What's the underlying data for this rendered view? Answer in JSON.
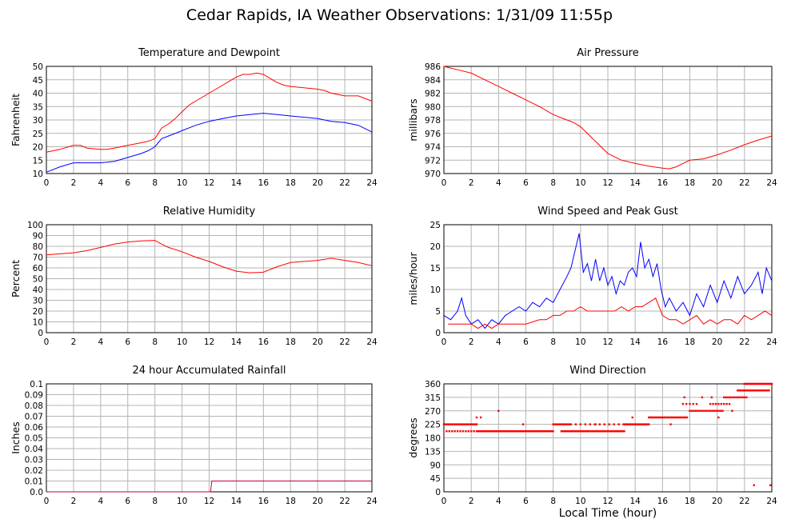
{
  "page": {
    "title": "Cedar Rapids, IA Weather Observations: 1/31/09 11:55p",
    "x_axis_label": "Local Time (hour)"
  },
  "colors": {
    "red": "#ff0000",
    "blue": "#0000ff",
    "rain": "#c0003a",
    "grid": "#b4b4b4"
  },
  "chart_data": [
    {
      "id": "temp",
      "type": "line",
      "title": "Temperature and Dewpoint",
      "ylabel": "Fahrenheit",
      "xlim": [
        0,
        24
      ],
      "ylim": [
        10,
        50
      ],
      "xticks": [
        0,
        2,
        4,
        6,
        8,
        10,
        12,
        14,
        16,
        18,
        20,
        22,
        24
      ],
      "yticks": [
        10,
        15,
        20,
        25,
        30,
        35,
        40,
        45,
        50
      ],
      "grid": true,
      "series": [
        {
          "color": "#ff0000",
          "x": [
            0,
            1,
            2,
            2.5,
            3,
            4,
            4.5,
            5,
            6,
            7,
            7.5,
            8,
            8.5,
            9,
            9.5,
            10,
            10.5,
            11,
            11.5,
            12,
            12.5,
            13,
            13.5,
            14,
            14.5,
            15,
            15.5,
            16,
            16.5,
            17,
            17.5,
            18,
            19,
            20,
            20.5,
            21,
            22,
            23,
            24
          ],
          "y": [
            18,
            19,
            20.5,
            20.5,
            19.5,
            19,
            19,
            19.5,
            20.5,
            21.5,
            22,
            23,
            27,
            28.5,
            30.5,
            33,
            35.5,
            37,
            38.5,
            40,
            41.5,
            43,
            44.5,
            46,
            47,
            47,
            47.5,
            47,
            45.5,
            44,
            43,
            42.5,
            42,
            41.5,
            41,
            40,
            39,
            39,
            37
          ]
        },
        {
          "color": "#0000ff",
          "x": [
            0,
            1,
            2,
            3,
            4,
            5,
            6,
            7,
            7.5,
            8,
            8.5,
            9,
            10,
            11,
            12,
            13,
            14,
            15,
            16,
            17,
            18,
            19,
            20,
            21,
            22,
            23,
            24
          ],
          "y": [
            10.5,
            12.5,
            14,
            14,
            14,
            14.5,
            16,
            17.5,
            18.5,
            20,
            23,
            24,
            26,
            28,
            29.5,
            30.5,
            31.5,
            32,
            32.5,
            32,
            31.5,
            31,
            30.5,
            29.5,
            29,
            28,
            25.5
          ]
        }
      ]
    },
    {
      "id": "pressure",
      "type": "line",
      "title": "Air Pressure",
      "ylabel": "millibars",
      "xlim": [
        0,
        24
      ],
      "ylim": [
        970,
        986
      ],
      "xticks": [
        0,
        2,
        4,
        6,
        8,
        10,
        12,
        14,
        16,
        18,
        20,
        22,
        24
      ],
      "yticks": [
        970,
        972,
        974,
        976,
        978,
        980,
        982,
        984,
        986
      ],
      "grid": true,
      "series": [
        {
          "color": "#ff0000",
          "x": [
            0,
            1,
            2,
            3,
            4,
            5,
            6,
            7,
            8,
            9,
            9.5,
            10,
            11,
            12,
            13,
            14,
            15,
            16,
            16.5,
            17,
            17.5,
            18,
            19,
            20,
            21,
            22,
            23,
            24
          ],
          "y": [
            986,
            985.5,
            985,
            984,
            983,
            982,
            981,
            980,
            978.8,
            978,
            977.6,
            977,
            975,
            973,
            972,
            971.5,
            971.1,
            970.8,
            970.7,
            971,
            971.5,
            972,
            972.2,
            972.8,
            973.5,
            974.3,
            975,
            975.6
          ]
        }
      ]
    },
    {
      "id": "humidity",
      "type": "line",
      "title": "Relative Humidity",
      "ylabel": "Percent",
      "xlim": [
        0,
        24
      ],
      "ylim": [
        0,
        100
      ],
      "xticks": [
        0,
        2,
        4,
        6,
        8,
        10,
        12,
        14,
        16,
        18,
        20,
        22,
        24
      ],
      "yticks": [
        0,
        10,
        20,
        30,
        40,
        50,
        60,
        70,
        80,
        90,
        100
      ],
      "grid": true,
      "series": [
        {
          "color": "#ff0000",
          "x": [
            0,
            1,
            2,
            3,
            4,
            5,
            6,
            7,
            8,
            8.5,
            9,
            10,
            11,
            12,
            13,
            14,
            15,
            16,
            17,
            18,
            19,
            20,
            21,
            22,
            23,
            24
          ],
          "y": [
            72,
            73,
            74,
            76,
            79,
            82,
            84,
            85,
            85.5,
            82,
            79,
            75,
            70,
            66,
            61,
            57,
            55.5,
            56,
            61,
            65,
            66,
            67,
            69,
            67,
            65,
            62
          ]
        }
      ]
    },
    {
      "id": "wind",
      "type": "line",
      "title": "Wind Speed and Peak Gust",
      "ylabel": "miles/hour",
      "xlim": [
        0,
        24
      ],
      "ylim": [
        0,
        25
      ],
      "xticks": [
        0,
        2,
        4,
        6,
        8,
        10,
        12,
        14,
        16,
        18,
        20,
        22,
        24
      ],
      "yticks": [
        0,
        5,
        10,
        15,
        20,
        25
      ],
      "grid": true,
      "series": [
        {
          "color": "#0000ff",
          "x": [
            0,
            0.5,
            1,
            1.3,
            1.6,
            2,
            2.5,
            3,
            3.5,
            4,
            4.5,
            5,
            5.5,
            6,
            6.5,
            7,
            7.5,
            8,
            8.5,
            9,
            9.3,
            9.6,
            9.9,
            10.2,
            10.5,
            10.8,
            11.1,
            11.4,
            11.7,
            12,
            12.3,
            12.6,
            12.9,
            13.2,
            13.5,
            13.8,
            14.1,
            14.4,
            14.7,
            15,
            15.3,
            15.6,
            15.9,
            16.2,
            16.5,
            17,
            17.5,
            18,
            18.5,
            19,
            19.5,
            20,
            20.5,
            21,
            21.5,
            22,
            22.5,
            23,
            23.3,
            23.6,
            24
          ],
          "y": [
            4,
            3,
            5,
            8,
            4,
            2,
            3,
            1,
            3,
            2,
            4,
            5,
            6,
            5,
            7,
            6,
            8,
            7,
            10,
            13,
            15,
            19,
            23,
            14,
            16,
            12,
            17,
            12,
            15,
            11,
            13,
            9,
            12,
            11,
            14,
            15,
            13,
            21,
            15,
            17,
            13,
            16,
            10,
            6,
            8,
            5,
            7,
            4,
            9,
            6,
            11,
            7,
            12,
            8,
            13,
            9,
            11,
            14,
            9,
            15,
            12
          ]
        },
        {
          "color": "#ff0000",
          "x": [
            0.3,
            1,
            2,
            2.5,
            3,
            3.5,
            4,
            5,
            6,
            7,
            7.5,
            8,
            8.5,
            9,
            9.5,
            10,
            10.5,
            11,
            11.5,
            12,
            12.5,
            13,
            13.5,
            14,
            14.5,
            15,
            15.5,
            16,
            16.5,
            17,
            17.5,
            18,
            18.5,
            19,
            19.5,
            20,
            20.5,
            21,
            21.5,
            22,
            22.5,
            23,
            23.5,
            24
          ],
          "y": [
            2,
            2,
            2,
            1,
            2,
            1,
            2,
            2,
            2,
            3,
            3,
            4,
            4,
            5,
            5,
            6,
            5,
            5,
            5,
            5,
            5,
            6,
            5,
            6,
            6,
            7,
            8,
            4,
            3,
            3,
            2,
            3,
            4,
            2,
            3,
            2,
            3,
            3,
            2,
            4,
            3,
            4,
            5,
            4
          ]
        }
      ]
    },
    {
      "id": "rain",
      "type": "line",
      "title": "24 hour Accumulated Rainfall",
      "ylabel": "Inches",
      "xlim": [
        0,
        24
      ],
      "ylim": [
        0,
        0.1
      ],
      "xticks": [
        0,
        2,
        4,
        6,
        8,
        10,
        12,
        14,
        16,
        18,
        20,
        22,
        24
      ],
      "yticks": [
        0.0,
        0.01,
        0.02,
        0.03,
        0.04,
        0.05,
        0.06,
        0.07,
        0.08,
        0.09,
        0.1
      ],
      "ytick_labels": [
        "0.0",
        "0.01",
        "0.02",
        "0.03",
        "0.04",
        "0.05",
        "0.06",
        "0.07",
        "0.08",
        "0.09",
        "0.1"
      ],
      "grid": true,
      "series": [
        {
          "color": "#c0003a",
          "x": [
            0,
            12.1,
            12.2,
            24
          ],
          "y": [
            0,
            0,
            0.01,
            0.01
          ]
        }
      ]
    },
    {
      "id": "direction",
      "type": "scatter",
      "title": "Wind Direction",
      "ylabel": "degrees",
      "xlim": [
        0,
        24
      ],
      "ylim": [
        0,
        360
      ],
      "xticks": [
        0,
        2,
        4,
        6,
        8,
        10,
        12,
        14,
        16,
        18,
        20,
        22,
        24
      ],
      "yticks": [
        0,
        45,
        90,
        135,
        180,
        225,
        270,
        315,
        360
      ],
      "grid": true,
      "series": [
        {
          "color": "#ff0000",
          "segments": [
            {
              "x0": 0,
              "x1": 2.5,
              "step": 0.12,
              "y": 225
            },
            {
              "x0": 0.2,
              "x1": 2.5,
              "step": 0.2,
              "y": 202
            },
            {
              "x0": 2.5,
              "x1": 8,
              "step": 0.09,
              "y": 202
            },
            {
              "x0": 8,
              "x1": 9.2,
              "step": 0.12,
              "y": 225
            },
            {
              "x0": 8.6,
              "x1": 13.2,
              "step": 0.1,
              "y": 202
            },
            {
              "x0": 9.3,
              "x1": 13.2,
              "step": 0.35,
              "y": 225
            },
            {
              "x0": 13.2,
              "x1": 15,
              "step": 0.1,
              "y": 225
            },
            {
              "x0": 15,
              "x1": 17.8,
              "step": 0.1,
              "y": 248
            },
            {
              "x0": 17.5,
              "x1": 18.5,
              "step": 0.25,
              "y": 293
            },
            {
              "x0": 18,
              "x1": 20.5,
              "step": 0.15,
              "y": 270
            },
            {
              "x0": 19.5,
              "x1": 21,
              "step": 0.2,
              "y": 293
            },
            {
              "x0": 20.5,
              "x1": 22.2,
              "step": 0.15,
              "y": 315
            },
            {
              "x0": 21.5,
              "x1": 23.8,
              "step": 0.1,
              "y": 338
            },
            {
              "x0": 22,
              "x1": 24,
              "step": 0.08,
              "y": 360
            }
          ],
          "points": [
            {
              "x": 2.4,
              "y": 248
            },
            {
              "x": 2.7,
              "y": 248
            },
            {
              "x": 4.0,
              "y": 270
            },
            {
              "x": 5.8,
              "y": 225
            },
            {
              "x": 11.1,
              "y": 225
            },
            {
              "x": 13.8,
              "y": 248
            },
            {
              "x": 16.6,
              "y": 225
            },
            {
              "x": 17.6,
              "y": 315
            },
            {
              "x": 18.9,
              "y": 315
            },
            {
              "x": 19.6,
              "y": 315
            },
            {
              "x": 20.1,
              "y": 248
            },
            {
              "x": 21.1,
              "y": 270
            },
            {
              "x": 22.7,
              "y": 22
            },
            {
              "x": 23.9,
              "y": 22
            }
          ]
        }
      ]
    }
  ]
}
